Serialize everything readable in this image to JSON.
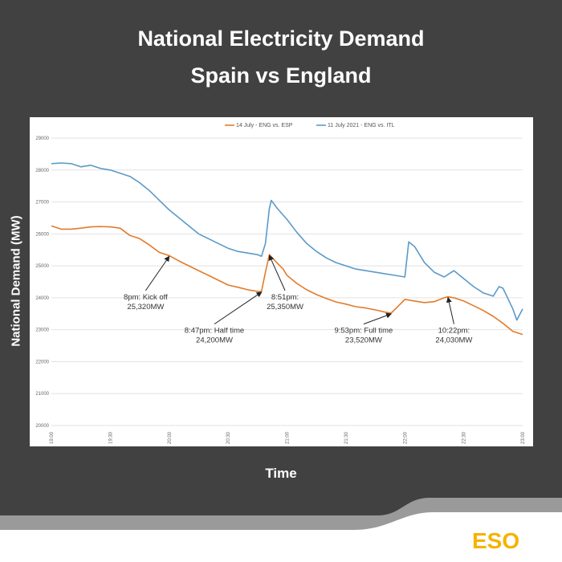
{
  "header": {
    "title_line1": "National Electricity Demand",
    "title_line2": "Spain vs England"
  },
  "brand": {
    "logo": "ESO",
    "logo_color": "#f5b300"
  },
  "chart_data": {
    "type": "line",
    "title": "National Electricity Demand Spain vs England",
    "xlabel": "Time",
    "ylabel": "National Demand (MW)",
    "ylim": [
      20000,
      29000
    ],
    "yticks": [
      20000,
      21000,
      22000,
      23000,
      24000,
      25000,
      26000,
      27000,
      28000,
      29000
    ],
    "xlim_minutes": [
      1140,
      1380
    ],
    "xticks": [
      {
        "m": 1140,
        "label": "19:00"
      },
      {
        "m": 1170,
        "label": "19:30"
      },
      {
        "m": 1200,
        "label": "20:00"
      },
      {
        "m": 1230,
        "label": "20:30"
      },
      {
        "m": 1260,
        "label": "21:00"
      },
      {
        "m": 1290,
        "label": "21:30"
      },
      {
        "m": 1320,
        "label": "22:00"
      },
      {
        "m": 1350,
        "label": "22:30"
      },
      {
        "m": 1380,
        "label": "23:00"
      }
    ],
    "grid": true,
    "legend_position": "top",
    "series": [
      {
        "name": "14 July - ENG vs. ESP",
        "color": "#e37b2a",
        "points": [
          [
            "19:00",
            26250
          ],
          [
            "19:05",
            26150
          ],
          [
            "19:10",
            26150
          ],
          [
            "19:15",
            26180
          ],
          [
            "19:20",
            26220
          ],
          [
            "19:25",
            26230
          ],
          [
            "19:30",
            26220
          ],
          [
            "19:35",
            26180
          ],
          [
            "19:40",
            25950
          ],
          [
            "19:45",
            25850
          ],
          [
            "19:50",
            25650
          ],
          [
            "19:55",
            25420
          ],
          [
            "20:00",
            25320
          ],
          [
            "20:05",
            25150
          ],
          [
            "20:10",
            25000
          ],
          [
            "20:15",
            24850
          ],
          [
            "20:20",
            24700
          ],
          [
            "20:25",
            24550
          ],
          [
            "20:30",
            24400
          ],
          [
            "20:35",
            24330
          ],
          [
            "20:40",
            24250
          ],
          [
            "20:45",
            24200
          ],
          [
            "20:47",
            24200
          ],
          [
            "20:49",
            24800
          ],
          [
            "20:51",
            25350
          ],
          [
            "20:54",
            25150
          ],
          [
            "20:58",
            24900
          ],
          [
            "21:00",
            24700
          ],
          [
            "21:05",
            24450
          ],
          [
            "21:10",
            24250
          ],
          [
            "21:15",
            24100
          ],
          [
            "21:20",
            23980
          ],
          [
            "21:25",
            23870
          ],
          [
            "21:30",
            23800
          ],
          [
            "21:35",
            23720
          ],
          [
            "21:40",
            23680
          ],
          [
            "21:45",
            23620
          ],
          [
            "21:50",
            23550
          ],
          [
            "21:53",
            23520
          ],
          [
            "21:56",
            23700
          ],
          [
            "22:00",
            23950
          ],
          [
            "22:05",
            23900
          ],
          [
            "22:10",
            23850
          ],
          [
            "22:15",
            23880
          ],
          [
            "22:20",
            24000
          ],
          [
            "22:22",
            24030
          ],
          [
            "22:25",
            24000
          ],
          [
            "22:30",
            23900
          ],
          [
            "22:35",
            23750
          ],
          [
            "22:40",
            23600
          ],
          [
            "22:45",
            23420
          ],
          [
            "22:50",
            23200
          ],
          [
            "22:55",
            22950
          ],
          [
            "23:00",
            22850
          ]
        ]
      },
      {
        "name": "11 July 2021 - ENG vs. ITL",
        "color": "#5b9ac8",
        "points": [
          [
            "19:00",
            28200
          ],
          [
            "19:05",
            28220
          ],
          [
            "19:10",
            28200
          ],
          [
            "19:15",
            28100
          ],
          [
            "19:20",
            28150
          ],
          [
            "19:25",
            28050
          ],
          [
            "19:30",
            28000
          ],
          [
            "19:35",
            27900
          ],
          [
            "19:40",
            27800
          ],
          [
            "19:45",
            27600
          ],
          [
            "19:50",
            27350
          ],
          [
            "19:55",
            27050
          ],
          [
            "20:00",
            26750
          ],
          [
            "20:05",
            26500
          ],
          [
            "20:10",
            26250
          ],
          [
            "20:15",
            26000
          ],
          [
            "20:20",
            25850
          ],
          [
            "20:25",
            25700
          ],
          [
            "20:30",
            25550
          ],
          [
            "20:35",
            25450
          ],
          [
            "20:40",
            25400
          ],
          [
            "20:45",
            25350
          ],
          [
            "20:47",
            25300
          ],
          [
            "20:49",
            25700
          ],
          [
            "20:51",
            26800
          ],
          [
            "20:52",
            27050
          ],
          [
            "20:55",
            26800
          ],
          [
            "21:00",
            26450
          ],
          [
            "21:05",
            26050
          ],
          [
            "21:10",
            25700
          ],
          [
            "21:15",
            25450
          ],
          [
            "21:20",
            25250
          ],
          [
            "21:25",
            25100
          ],
          [
            "21:30",
            25000
          ],
          [
            "21:35",
            24900
          ],
          [
            "21:40",
            24850
          ],
          [
            "21:45",
            24800
          ],
          [
            "21:50",
            24750
          ],
          [
            "21:55",
            24700
          ],
          [
            "22:00",
            24650
          ],
          [
            "22:02",
            25750
          ],
          [
            "22:05",
            25600
          ],
          [
            "22:10",
            25100
          ],
          [
            "22:15",
            24800
          ],
          [
            "22:20",
            24650
          ],
          [
            "22:25",
            24850
          ],
          [
            "22:30",
            24600
          ],
          [
            "22:35",
            24350
          ],
          [
            "22:40",
            24150
          ],
          [
            "22:45",
            24050
          ],
          [
            "22:48",
            24350
          ],
          [
            "22:50",
            24300
          ],
          [
            "22:55",
            23650
          ],
          [
            "22:57",
            23300
          ],
          [
            "23:00",
            23650
          ]
        ]
      }
    ],
    "annotations": [
      {
        "line1": "8pm: Kick off",
        "line2": "25,320MW",
        "point": [
          "20:00",
          25320
        ],
        "label_at": [
          "19:48",
          23950
        ]
      },
      {
        "line1": "8:47pm: Half time",
        "line2": "24,200MW",
        "point": [
          "20:47",
          24200
        ],
        "label_at": [
          "20:23",
          22900
        ]
      },
      {
        "line1": "8:51pm:",
        "line2": "25,350MW",
        "point": [
          "20:51",
          25350
        ],
        "label_at": [
          "20:59",
          23950
        ]
      },
      {
        "line1": "9:53pm: Full time",
        "line2": "23,520MW",
        "point": [
          "21:53",
          23520
        ],
        "label_at": [
          "21:39",
          22900
        ]
      },
      {
        "line1": "10:22pm:",
        "line2": "24,030MW",
        "point": [
          "22:22",
          24030
        ],
        "label_at": [
          "22:25",
          22900
        ]
      }
    ]
  }
}
